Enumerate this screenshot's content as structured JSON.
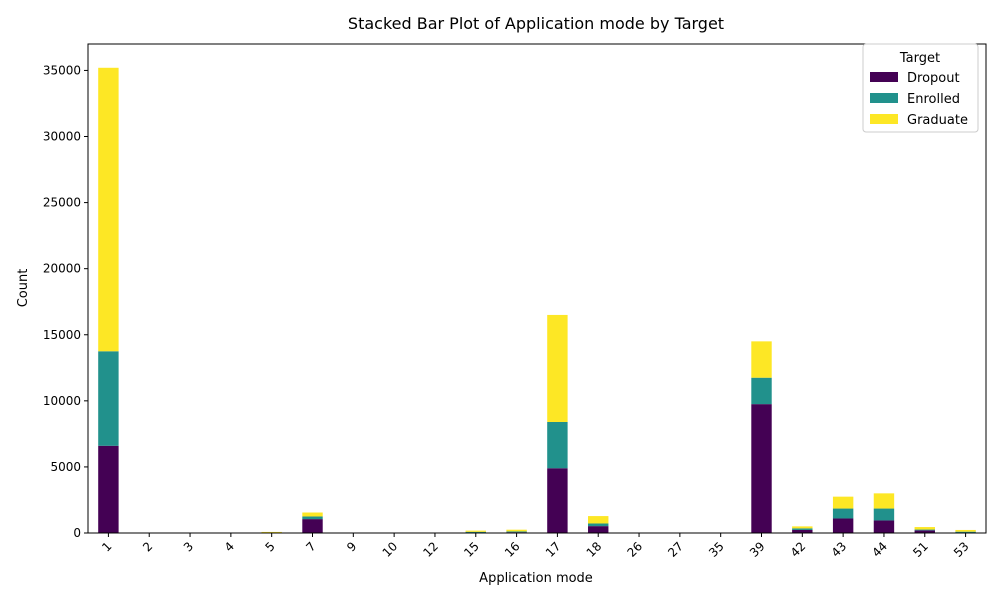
{
  "chart_data": {
    "type": "bar",
    "stacked": true,
    "title": "Stacked Bar Plot of Application mode by Target",
    "xlabel": "Application mode",
    "ylabel": "Count",
    "ylim": [
      0,
      37000
    ],
    "yticks": [
      0,
      5000,
      10000,
      15000,
      20000,
      25000,
      30000,
      35000
    ],
    "grid": false,
    "legend": {
      "title": "Target",
      "position": "top-right"
    },
    "categories": [
      "1",
      "2",
      "3",
      "4",
      "5",
      "7",
      "9",
      "10",
      "12",
      "15",
      "16",
      "17",
      "18",
      "26",
      "27",
      "35",
      "39",
      "42",
      "43",
      "44",
      "51",
      "53"
    ],
    "series": [
      {
        "name": "Dropout",
        "color": "#440154",
        "values": [
          6600,
          5,
          5,
          5,
          20,
          1050,
          5,
          5,
          5,
          40,
          60,
          4900,
          520,
          2,
          2,
          2,
          9750,
          230,
          1100,
          950,
          200,
          40
        ]
      },
      {
        "name": "Enrolled",
        "color": "#21918c",
        "values": [
          7150,
          3,
          3,
          3,
          20,
          200,
          3,
          3,
          3,
          50,
          60,
          3500,
          200,
          1,
          1,
          1,
          2000,
          120,
          750,
          900,
          60,
          60
        ]
      },
      {
        "name": "Graduate",
        "color": "#fde725",
        "values": [
          21450,
          10,
          10,
          10,
          40,
          300,
          10,
          10,
          10,
          90,
          130,
          8100,
          560,
          2,
          2,
          2,
          2750,
          150,
          900,
          1150,
          190,
          130
        ]
      }
    ]
  }
}
